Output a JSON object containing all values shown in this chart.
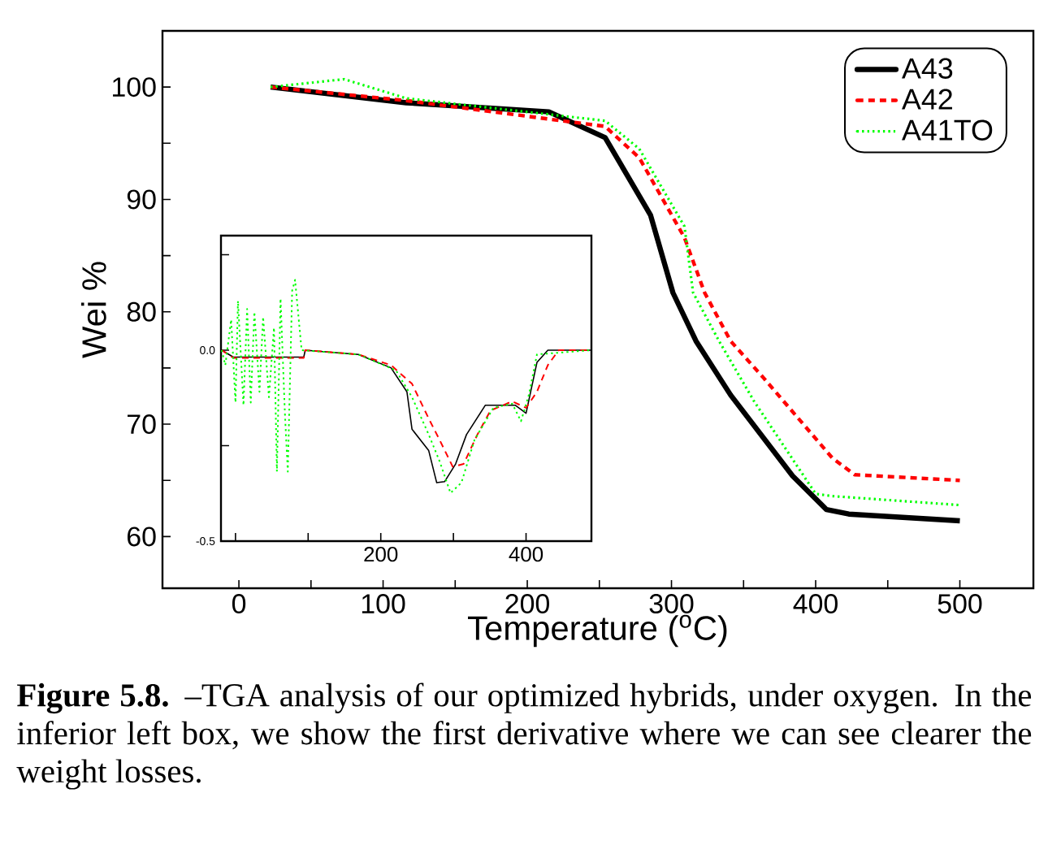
{
  "chart_data": [
    {
      "type": "line",
      "xlabel": "Temperature ($^{o}$C)",
      "ylabel": "Wei          %",
      "xlim": [
        -53,
        551
      ],
      "ylim": [
        55.4,
        105
      ],
      "xticks": [
        0,
        {
          "value": 50,
          "label": null
        },
        100,
        {
          "value": 150,
          "label": null
        },
        200,
        {
          "value": 250,
          "label": null
        },
        300,
        {
          "value": 350,
          "label": null
        },
        400,
        {
          "value": 450,
          "label": null
        },
        500
      ],
      "yticks": [
        60,
        {
          "value": 65,
          "label": null
        },
        70,
        {
          "value": 75,
          "label": null
        },
        80,
        {
          "value": 85,
          "label": null
        },
        90,
        {
          "value": 95,
          "label": null
        },
        100
      ],
      "legend": "top right",
      "annotations": [
        "**Figure 5.8.** –TGA analysis of our optimized hybrids, under oxygen. In the inferior left box, we show the first derivative where we can see clearer the weight losses."
      ],
      "series": [
        {
          "name": "A43",
          "color": "#000000",
          "line_style": "solid",
          "x": [
            22,
            116,
            215,
            254,
            285.5,
            301,
            317,
            341,
            384,
            407.5,
            423,
            500
          ],
          "values": [
            100,
            98.6,
            97.8,
            95.5,
            88.6,
            81.7,
            77.4,
            72.6,
            65.4,
            62.4,
            62.0,
            61.4
          ]
        },
        {
          "name": "A42",
          "color": "#ff0000",
          "line_style": "dashed",
          "x": [
            22,
            116,
            254,
            277.7,
            309,
            323,
            341,
            364,
            411.5,
            427,
            500
          ],
          "values": [
            100,
            98.8,
            96.5,
            93.7,
            86.6,
            81.7,
            77.4,
            74.1,
            67.0,
            65.5,
            65.0
          ]
        },
        {
          "name": "A41TO",
          "color": "#00ff00",
          "line_style": "dotted",
          "x": [
            22,
            73,
            116,
            254,
            277.7,
            309,
            315,
            333,
            357,
            400,
            411.5,
            500
          ],
          "values": [
            100,
            100.7,
            99.0,
            97.0,
            94.5,
            87.6,
            81.7,
            77.4,
            72.1,
            63.8,
            63.6,
            62.8
          ]
        }
      ]
    },
    {
      "type": "line",
      "xlim": [
        -20,
        490
      ],
      "ylim": [
        -0.5,
        0.3
      ],
      "xticks": [
        {
          "value": 0,
          "label": null
        },
        {
          "value": 100,
          "label": null
        },
        200,
        {
          "value": 300,
          "label": null
        },
        400
      ],
      "yticks": [
        -0.5,
        {
          "value": -0.25,
          "label": null
        },
        {
          "value": 0,
          "label": "0.0"
        },
        {
          "value": 0.25,
          "label": null
        }
      ],
      "series": [
        {
          "color": "#000000",
          "line_style": "solid",
          "x": [
            -19,
            -3,
            94,
            96,
            169,
            214,
            236,
            243,
            266,
            277,
            288,
            303,
            318,
            344,
            385,
            400,
            415,
            430,
            489
          ],
          "values": [
            0,
            -0.018,
            -0.018,
            0,
            -0.011,
            -0.046,
            -0.109,
            -0.207,
            -0.263,
            -0.347,
            -0.344,
            -0.298,
            -0.221,
            -0.144,
            -0.144,
            -0.165,
            -0.032,
            0,
            0
          ]
        },
        {
          "color": "#ff0000",
          "line_style": "dashed",
          "x": [
            -19,
            -3,
            94,
            96,
            169,
            214,
            243,
            266,
            281,
            299,
            314,
            333,
            351,
            381,
            400,
            415,
            430,
            445,
            489
          ],
          "values": [
            0,
            -0.02,
            -0.02,
            0,
            -0.011,
            -0.039,
            -0.088,
            -0.179,
            -0.235,
            -0.305,
            -0.298,
            -0.221,
            -0.158,
            -0.134,
            -0.151,
            -0.109,
            -0.039,
            0,
            0
          ]
        },
        {
          "color": "#00ff00",
          "line_style": "dotted",
          "x": [
            -19,
            -14,
            -6,
            0,
            3.4,
            11,
            16,
            21,
            26,
            33,
            38,
            46,
            53,
            57,
            62,
            68,
            72,
            78,
            82,
            91,
            169,
            221,
            243,
            266,
            281,
            296,
            311,
            329,
            355,
            381,
            393,
            404,
            415,
            489
          ],
          "values": [
            0,
            -0.039,
            0.08,
            -0.137,
            0.129,
            -0.144,
            0.108,
            -0.137,
            0.1,
            -0.109,
            0.087,
            -0.123,
            0.059,
            -0.318,
            0.135,
            -0.165,
            -0.318,
            0.156,
            0.184,
            0,
            -0.011,
            -0.053,
            -0.123,
            -0.221,
            -0.291,
            -0.374,
            -0.347,
            -0.235,
            -0.151,
            -0.14,
            -0.186,
            -0.116,
            -0.011,
            0
          ]
        }
      ]
    }
  ]
}
